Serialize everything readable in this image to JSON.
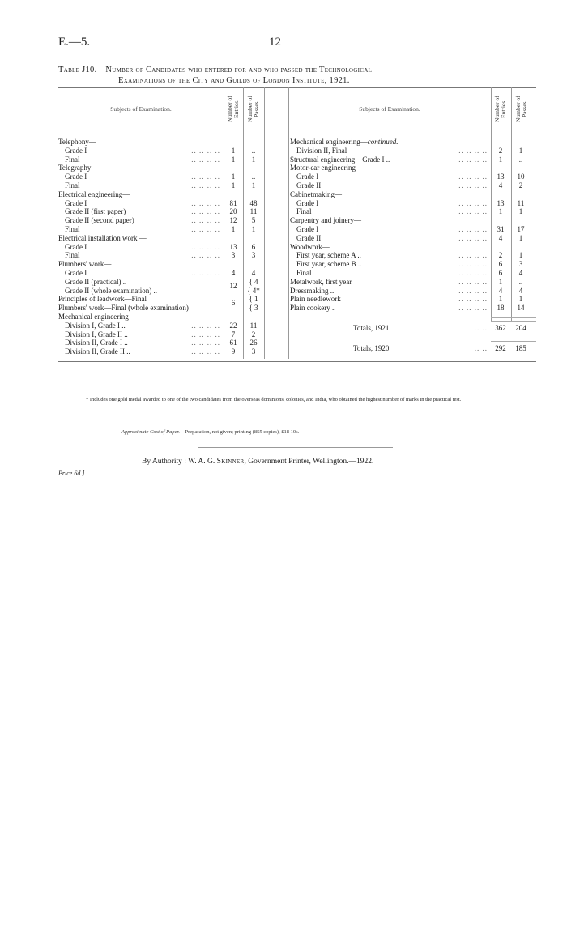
{
  "header": {
    "report_code": "E.—5.",
    "page_number": "12"
  },
  "title": {
    "line1": "Table J10.—Number of Candidates who entered for and who passed the Technological",
    "line2": "Examinations of the City and Guilds of London Institute, 1921."
  },
  "columns": {
    "subjects": "Subjects of Examination.",
    "entries": "Number of Entries.",
    "passes": "Number of Passes."
  },
  "left_rows": [
    {
      "label": "Telephony—",
      "indent": 0
    },
    {
      "label": "Grade I",
      "indent": 1,
      "dots": true,
      "entries": "1",
      "passes": ".."
    },
    {
      "label": "Final",
      "indent": 1,
      "dots": true,
      "entries": "1",
      "passes": "1"
    },
    {
      "label": "Telegraphy—",
      "indent": 0
    },
    {
      "label": "Grade I",
      "indent": 1,
      "dots": true,
      "entries": "1",
      "passes": ".."
    },
    {
      "label": "Final",
      "indent": 1,
      "dots": true,
      "entries": "1",
      "passes": "1"
    },
    {
      "label": "Electrical engineering—",
      "indent": 0
    },
    {
      "label": "Grade I",
      "indent": 1,
      "dots": true,
      "entries": "81",
      "passes": "48"
    },
    {
      "label": "Grade II (first paper)",
      "indent": 1,
      "dots": true,
      "entries": "20",
      "passes": "11"
    },
    {
      "label": "Grade II (second paper)",
      "indent": 1,
      "dots": true,
      "entries": "12",
      "passes": "5"
    },
    {
      "label": "Final",
      "indent": 1,
      "dots": true,
      "entries": "1",
      "passes": "1"
    },
    {
      "label": "Electrical installation work —",
      "indent": 0
    },
    {
      "label": "Grade I",
      "indent": 1,
      "dots": true,
      "entries": "13",
      "passes": "6"
    },
    {
      "label": "Final",
      "indent": 1,
      "dots": true,
      "entries": "3",
      "passes": "3"
    },
    {
      "label": "Plumbers' work—",
      "indent": 0
    },
    {
      "label": "Grade I",
      "indent": 1,
      "dots": true,
      "entries": "4",
      "passes": "4"
    },
    {
      "label": "Grade II (practical) ..",
      "indent": 1,
      "entries": "12",
      "entries_lowered": true,
      "passes": "{ 4"
    },
    {
      "label": "Grade II (whole examination) ..",
      "indent": 1,
      "passes": "{ 4*"
    },
    {
      "label": "Principles of leadwork—Final",
      "indent": 0,
      "entries": "6",
      "entries_lowered": true,
      "passes": "{ 1"
    },
    {
      "label": "Plumbers' work—Final (whole examination)",
      "indent": 0,
      "passes": "{ 3"
    },
    {
      "label": "Mechanical engineering—",
      "indent": 0
    },
    {
      "label": "Division I, Grade I ..",
      "indent": 1,
      "dots": true,
      "entries": "22",
      "passes": "11"
    },
    {
      "label": "Division I, Grade II ..",
      "indent": 1,
      "dots": true,
      "entries": "7",
      "passes": "2"
    },
    {
      "label": "Division II, Grade I ..",
      "indent": 1,
      "dots": true,
      "entries": "61",
      "passes": "26"
    },
    {
      "label": "Division II, Grade II ..",
      "indent": 1,
      "dots": true,
      "entries": "9",
      "passes": "3"
    }
  ],
  "right_rows": [
    {
      "label": "Mechanical engineering—",
      "italic_suffix": "continued.",
      "indent": 0
    },
    {
      "label": "Division II, Final",
      "indent": 1,
      "dots": true,
      "entries": "2",
      "passes": "1"
    },
    {
      "label": "Structural engineering—Grade I ..",
      "indent": 0,
      "dots": true,
      "entries": "1",
      "passes": ".."
    },
    {
      "label": "Motor-car engineering—",
      "indent": 0
    },
    {
      "label": "Grade I",
      "indent": 1,
      "dots": true,
      "entries": "13",
      "passes": "10"
    },
    {
      "label": "Grade II",
      "indent": 1,
      "dots": true,
      "entries": "4",
      "passes": "2"
    },
    {
      "label": "Cabinetmaking—",
      "indent": 0
    },
    {
      "label": "Grade I",
      "indent": 1,
      "dots": true,
      "entries": "13",
      "passes": "11"
    },
    {
      "label": "Final",
      "indent": 1,
      "dots": true,
      "entries": "1",
      "passes": "1"
    },
    {
      "label": "Carpentry and joinery—",
      "indent": 0
    },
    {
      "label": "Grade I",
      "indent": 1,
      "dots": true,
      "entries": "31",
      "passes": "17"
    },
    {
      "label": "Grade II",
      "indent": 1,
      "dots": true,
      "entries": "4",
      "passes": "1"
    },
    {
      "label": "Woodwork—",
      "indent": 0
    },
    {
      "label": "First year, scheme A ..",
      "indent": 1,
      "dots": true,
      "entries": "2",
      "passes": "1"
    },
    {
      "label": "First year, scheme B ..",
      "indent": 1,
      "dots": true,
      "entries": "6",
      "passes": "3"
    },
    {
      "label": "Final",
      "indent": 1,
      "dots": true,
      "entries": "6",
      "passes": "4"
    },
    {
      "label": "Metalwork, first year",
      "indent": 0,
      "dots": true,
      "entries": "1",
      "passes": ".."
    },
    {
      "label": "Dressmaking ..",
      "indent": 0,
      "dots": true,
      "entries": "4",
      "passes": "4"
    },
    {
      "label": "Plain needlework",
      "indent": 0,
      "dots": true,
      "entries": "1",
      "passes": "1"
    },
    {
      "label": "Plain cookery ..",
      "indent": 0,
      "dots": true,
      "entries": "18",
      "passes": "14"
    }
  ],
  "totals": [
    {
      "label": "Totals, 1921",
      "entries": "362",
      "passes": "204"
    },
    {
      "label": "Totals, 1920",
      "entries": "292",
      "passes": "185"
    }
  ],
  "dots": "..        ..        ..        ..",
  "footnote": "* Includes one gold medal awarded to one of the two candidates from the overseas dominions, colonies, and India, who obtained the highest number of marks in the practical test.",
  "cost": {
    "label": "Approximate Cost of Paper.",
    "text": "—Preparation, not given; printing (855 copies), £18 10s."
  },
  "imprint": {
    "prefix": "By Authority :  W. A. G. ",
    "printer_name": "Skinner",
    "suffix": ", Government Printer, Wellington.—1922."
  },
  "price": "Price 6d.]"
}
